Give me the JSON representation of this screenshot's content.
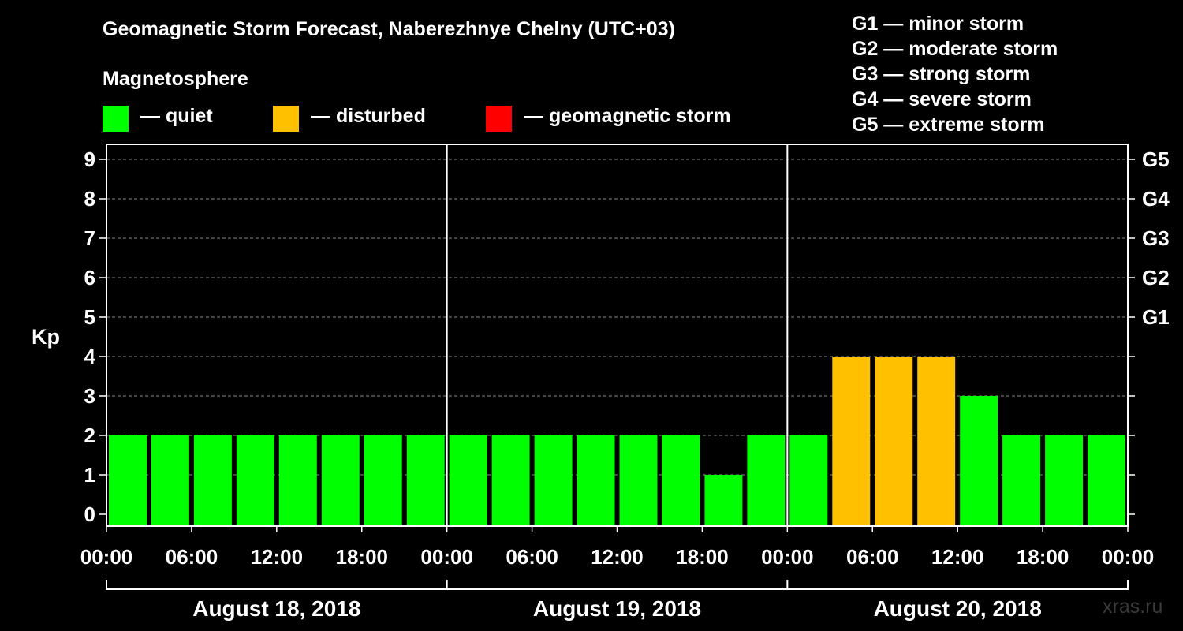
{
  "title": "Geomagnetic Storm Forecast, Naberezhnye Chelny (UTC+03)",
  "legend": {
    "heading": "Magnetosphere",
    "items": [
      {
        "label": "— quiet",
        "color": "#00ff00"
      },
      {
        "label": "— disturbed",
        "color": "#ffc000"
      },
      {
        "label": "— geomagnetic storm",
        "color": "#ff0000"
      }
    ]
  },
  "storm_scale": [
    "G1 — minor storm",
    "G2 — moderate storm",
    "G3 — strong storm",
    "G4 — severe storm",
    "G5 — extreme storm"
  ],
  "credit": "xras.ru",
  "chart_data": {
    "type": "bar",
    "ylabel": "Kp",
    "ylim": [
      0,
      9
    ],
    "yticks": [
      0,
      1,
      2,
      3,
      4,
      5,
      6,
      7,
      8,
      9
    ],
    "right_axis_labels": [
      {
        "kp": 5,
        "label": "G1"
      },
      {
        "kp": 6,
        "label": "G2"
      },
      {
        "kp": 7,
        "label": "G3"
      },
      {
        "kp": 8,
        "label": "G4"
      },
      {
        "kp": 9,
        "label": "G5"
      }
    ],
    "grid": true,
    "xtick_labels": [
      "00:00",
      "06:00",
      "12:00",
      "18:00",
      "00:00",
      "06:00",
      "12:00",
      "18:00",
      "00:00",
      "06:00",
      "12:00",
      "18:00",
      "00:00"
    ],
    "days": [
      "August 18, 2018",
      "August 19, 2018",
      "August 20, 2018"
    ],
    "bar_interval_hours": 3,
    "values": [
      2,
      2,
      2,
      2,
      2,
      2,
      2,
      2,
      2,
      2,
      2,
      2,
      2,
      2,
      1,
      2,
      2,
      4,
      4,
      4,
      3,
      2,
      2,
      2
    ],
    "color_rule": {
      "quiet_max": 3,
      "disturbed_max": 4
    }
  }
}
